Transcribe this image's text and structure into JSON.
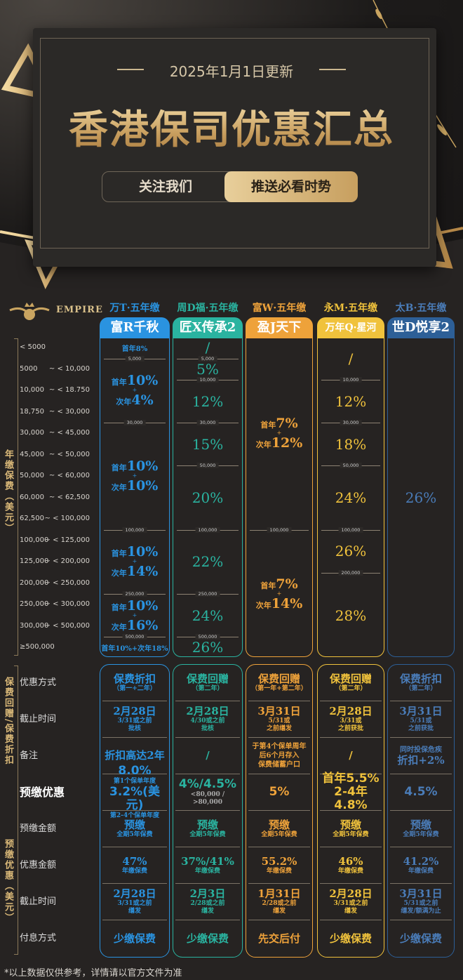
{
  "header": {
    "date": "2025年1月1日更新",
    "title": "香港保司优惠汇总",
    "follow_label": "关注我们",
    "push_label": "推送必看时势"
  },
  "logo": {
    "text": "EMPIRE"
  },
  "colors": {
    "col1": "#2a93e0",
    "col2": "#2ab3a0",
    "col3": "#eea23a",
    "col4": "#f0c23c",
    "col5": "#2d5f97",
    "col5_text": "#4a7cb8"
  },
  "columns": [
    {
      "company": "万T·五年缴",
      "product": "富R千秋"
    },
    {
      "company": "周D福·五年缴",
      "product": "匠X传承2"
    },
    {
      "company": "富W·五年缴",
      "product": "盈J天下"
    },
    {
      "company": "永M·五年缴",
      "product": "万年Q·星河"
    },
    {
      "company": "太B·五年缴",
      "product": "世D悦享2"
    }
  ],
  "rate_table": {
    "group_label": "年缴保费（美元）",
    "first_label": "首年",
    "second_label": "次年",
    "plus": "+",
    "thresholds": [
      0,
      5000,
      10000,
      18750,
      30000,
      45000,
      50000,
      60000,
      62500,
      100000,
      125000,
      200000,
      250000,
      300000,
      500000,
      null
    ],
    "row_labels": [
      {
        "from": "< 5000",
        "to": ""
      },
      {
        "from": "5000",
        "to": "~ < 10,000"
      },
      {
        "from": "10,000",
        "to": "~ < 18.750"
      },
      {
        "from": "18,750",
        "to": "~ < 30,000"
      },
      {
        "from": "30,000",
        "to": "~ < 45,000"
      },
      {
        "from": "45,000",
        "to": "~ < 50,000"
      },
      {
        "from": "50,000",
        "to": "~ < 60,000"
      },
      {
        "from": "60,000",
        "to": "~ < 62,500"
      },
      {
        "from": "62,500",
        "to": "~ < 100,000"
      },
      {
        "from": "100,000",
        "to": "~ < 125,000"
      },
      {
        "from": "125,000",
        "to": "~ < 200,000"
      },
      {
        "from": "200,000",
        "to": "~ < 250,000"
      },
      {
        "from": "250,000",
        "to": "~ < 300,000"
      },
      {
        "from": "300,000",
        "to": "~ < 500,000"
      },
      {
        "from": "≥500,000",
        "to": ""
      }
    ],
    "segments": [
      [
        {
          "from": 0,
          "to": 5000,
          "text": "首年8%"
        },
        {
          "from": 5000,
          "to": 30000,
          "boundary": "5,000",
          "first": "10%",
          "second": "4%"
        },
        {
          "from": 30000,
          "to": 100000,
          "boundary": "30,000",
          "first": "10%",
          "second": "10%"
        },
        {
          "from": 100000,
          "to": 250000,
          "boundary": "100,000",
          "first": "10%",
          "second": "14%"
        },
        {
          "from": 250000,
          "to": 500000,
          "boundary": "250,000",
          "first": "10%",
          "second": "16%"
        },
        {
          "from": 500000,
          "to": null,
          "boundary": "500,000",
          "text": "首年10%+次年18%"
        }
      ],
      [
        {
          "from": 0,
          "to": 5000,
          "value": "/"
        },
        {
          "from": 5000,
          "to": 10000,
          "boundary": "5,000",
          "value": "5%"
        },
        {
          "from": 10000,
          "to": 30000,
          "boundary": "10,000",
          "value": "12%"
        },
        {
          "from": 30000,
          "to": 50000,
          "boundary": "30,000",
          "value": "15%"
        },
        {
          "from": 50000,
          "to": 100000,
          "boundary": "50,000",
          "value": "20%"
        },
        {
          "from": 100000,
          "to": 250000,
          "boundary": "100,000",
          "value": "22%"
        },
        {
          "from": 250000,
          "to": 500000,
          "boundary": "250,000",
          "value": "24%"
        },
        {
          "from": 500000,
          "to": null,
          "boundary": "500,000",
          "value": "26%"
        }
      ],
      [
        {
          "from": 0,
          "to": 100000,
          "first": "7%",
          "second": "12%"
        },
        {
          "from": 100000,
          "to": null,
          "boundary": "100,000",
          "first": "7%",
          "second": "14%"
        }
      ],
      [
        {
          "from": 0,
          "to": 10000,
          "value": "/"
        },
        {
          "from": 10000,
          "to": 30000,
          "boundary": "10,000",
          "value": "12%"
        },
        {
          "from": 30000,
          "to": 50000,
          "boundary": "30,000",
          "value": "18%"
        },
        {
          "from": 50000,
          "to": 100000,
          "boundary": "50,000",
          "value": "24%"
        },
        {
          "from": 100000,
          "to": 200000,
          "boundary": "100,000",
          "value": "26%"
        },
        {
          "from": 200000,
          "to": null,
          "boundary": "200,000",
          "value": "28%"
        }
      ],
      [
        {
          "from": 0,
          "to": null,
          "value": "26%"
        }
      ]
    ]
  },
  "offers": {
    "group1_label": "保费回赠/保费折扣",
    "group2_label": "预缴优惠（美元）",
    "row_labels": [
      "优惠方式",
      "截止时间",
      "备注",
      "预缴优惠",
      "预缴金额",
      "优惠金额",
      "截止时间",
      "付息方式"
    ],
    "cells": [
      [
        [
          {
            "k": "main",
            "t": "保费折扣"
          },
          {
            "k": "sub",
            "t": "（第一+二年）"
          }
        ],
        [
          {
            "k": "main",
            "t": "2月28日"
          },
          {
            "k": "sub",
            "t": "3/31或之前"
          },
          {
            "k": "sub",
            "t": "批核"
          }
        ],
        [
          {
            "k": "main",
            "t": "折扣高达2年"
          }
        ],
        [
          {
            "k": "pct",
            "t": "8.0%"
          },
          {
            "k": "sub",
            "t": "第1个保单年度"
          },
          {
            "k": "pct",
            "t": "3.2%(美元)"
          },
          {
            "k": "sub",
            "t": "第2-4个保单年度"
          }
        ],
        [
          {
            "k": "main",
            "t": "预缴"
          },
          {
            "k": "sub",
            "t": "全期5年保费"
          }
        ],
        [
          {
            "k": "main",
            "t": "47%"
          },
          {
            "k": "sub",
            "t": "年缴保费"
          }
        ],
        [
          {
            "k": "main",
            "t": "2月28日"
          },
          {
            "k": "sub",
            "t": "3/31或之前"
          },
          {
            "k": "sub",
            "t": "缮发"
          }
        ],
        [
          {
            "k": "main",
            "t": "少缴保费"
          }
        ]
      ],
      [
        [
          {
            "k": "main",
            "t": "保费回赠"
          },
          {
            "k": "sub",
            "t": "（第二年）"
          }
        ],
        [
          {
            "k": "main",
            "t": "2月28日"
          },
          {
            "k": "sub",
            "t": "4/30或之前"
          },
          {
            "k": "sub",
            "t": "批核"
          }
        ],
        [
          {
            "k": "main",
            "t": "/"
          }
        ],
        [
          {
            "k": "pct",
            "t": "4%/4.5%"
          },
          {
            "k": "sub",
            "t": "<80,000 / >80,000"
          }
        ],
        [
          {
            "k": "main",
            "t": "预缴"
          },
          {
            "k": "sub",
            "t": "全期5年保费"
          }
        ],
        [
          {
            "k": "main",
            "t": "37%/41%"
          },
          {
            "k": "sub",
            "t": "年缴保费"
          }
        ],
        [
          {
            "k": "main",
            "t": "2月3日"
          },
          {
            "k": "sub",
            "t": "2/28或之前"
          },
          {
            "k": "sub",
            "t": "缮发"
          }
        ],
        [
          {
            "k": "main",
            "t": "少缴保费"
          }
        ]
      ],
      [
        [
          {
            "k": "main",
            "t": "保费回赠"
          },
          {
            "k": "sub",
            "t": "（第一年+第二年）"
          }
        ],
        [
          {
            "k": "main",
            "t": "3月31日"
          },
          {
            "k": "sub",
            "t": "5/31或"
          },
          {
            "k": "sub",
            "t": "之前缮发"
          }
        ],
        [
          {
            "k": "note",
            "t": "于第4个保单周年"
          },
          {
            "k": "note",
            "t": "后6个月存入"
          },
          {
            "k": "note",
            "t": "保费储蓄户口"
          }
        ],
        [
          {
            "k": "pct",
            "t": "5%"
          }
        ],
        [
          {
            "k": "main",
            "t": "预缴"
          },
          {
            "k": "sub",
            "t": "全期5年保费"
          }
        ],
        [
          {
            "k": "main",
            "t": "55.2%"
          },
          {
            "k": "sub",
            "t": "年缴保费"
          }
        ],
        [
          {
            "k": "main",
            "t": "1月31日"
          },
          {
            "k": "sub",
            "t": "2/28或之前"
          },
          {
            "k": "sub",
            "t": "缮发"
          }
        ],
        [
          {
            "k": "main",
            "t": "先交后付"
          }
        ]
      ],
      [
        [
          {
            "k": "main",
            "t": "保费回赠"
          },
          {
            "k": "sub",
            "t": "（第二年）"
          }
        ],
        [
          {
            "k": "main",
            "t": "2月28日"
          },
          {
            "k": "sub",
            "t": "3/31或"
          },
          {
            "k": "sub",
            "t": "之前获批"
          }
        ],
        [
          {
            "k": "main",
            "t": "/"
          }
        ],
        [
          {
            "k": "pct",
            "t": "首年5.5%"
          },
          {
            "k": "pct",
            "t": "2-4年4.8%"
          }
        ],
        [
          {
            "k": "main",
            "t": "预缴"
          },
          {
            "k": "sub",
            "t": "全期5年保费"
          }
        ],
        [
          {
            "k": "main",
            "t": "46%"
          },
          {
            "k": "sub",
            "t": "年缴保费"
          }
        ],
        [
          {
            "k": "main",
            "t": "2月28日"
          },
          {
            "k": "sub",
            "t": "3/31或之前"
          },
          {
            "k": "sub",
            "t": "缮发"
          }
        ],
        [
          {
            "k": "main",
            "t": "少缴保费"
          }
        ]
      ],
      [
        [
          {
            "k": "main",
            "t": "保费折扣"
          },
          {
            "k": "sub",
            "t": "（第二年）"
          }
        ],
        [
          {
            "k": "main",
            "t": "3月31日"
          },
          {
            "k": "sub",
            "t": "5/31或"
          },
          {
            "k": "sub",
            "t": "之前获批"
          }
        ],
        [
          {
            "k": "note",
            "t": "同时投保危疾"
          },
          {
            "k": "main",
            "t": "折扣+2%"
          }
        ],
        [
          {
            "k": "pct",
            "t": "4.5%"
          }
        ],
        [
          {
            "k": "main",
            "t": "预缴"
          },
          {
            "k": "sub",
            "t": "全期5年保费"
          }
        ],
        [
          {
            "k": "main",
            "t": "41.2%"
          },
          {
            "k": "sub",
            "t": "年缴保费"
          }
        ],
        [
          {
            "k": "main",
            "t": "3月31日"
          },
          {
            "k": "sub",
            "t": "5/31或之前"
          },
          {
            "k": "sub",
            "t": "缮发/额满为止"
          }
        ],
        [
          {
            "k": "main",
            "t": "少缴保费"
          }
        ]
      ]
    ]
  },
  "footer": "*以上数据仅供参考，详情请以官方文件为准"
}
